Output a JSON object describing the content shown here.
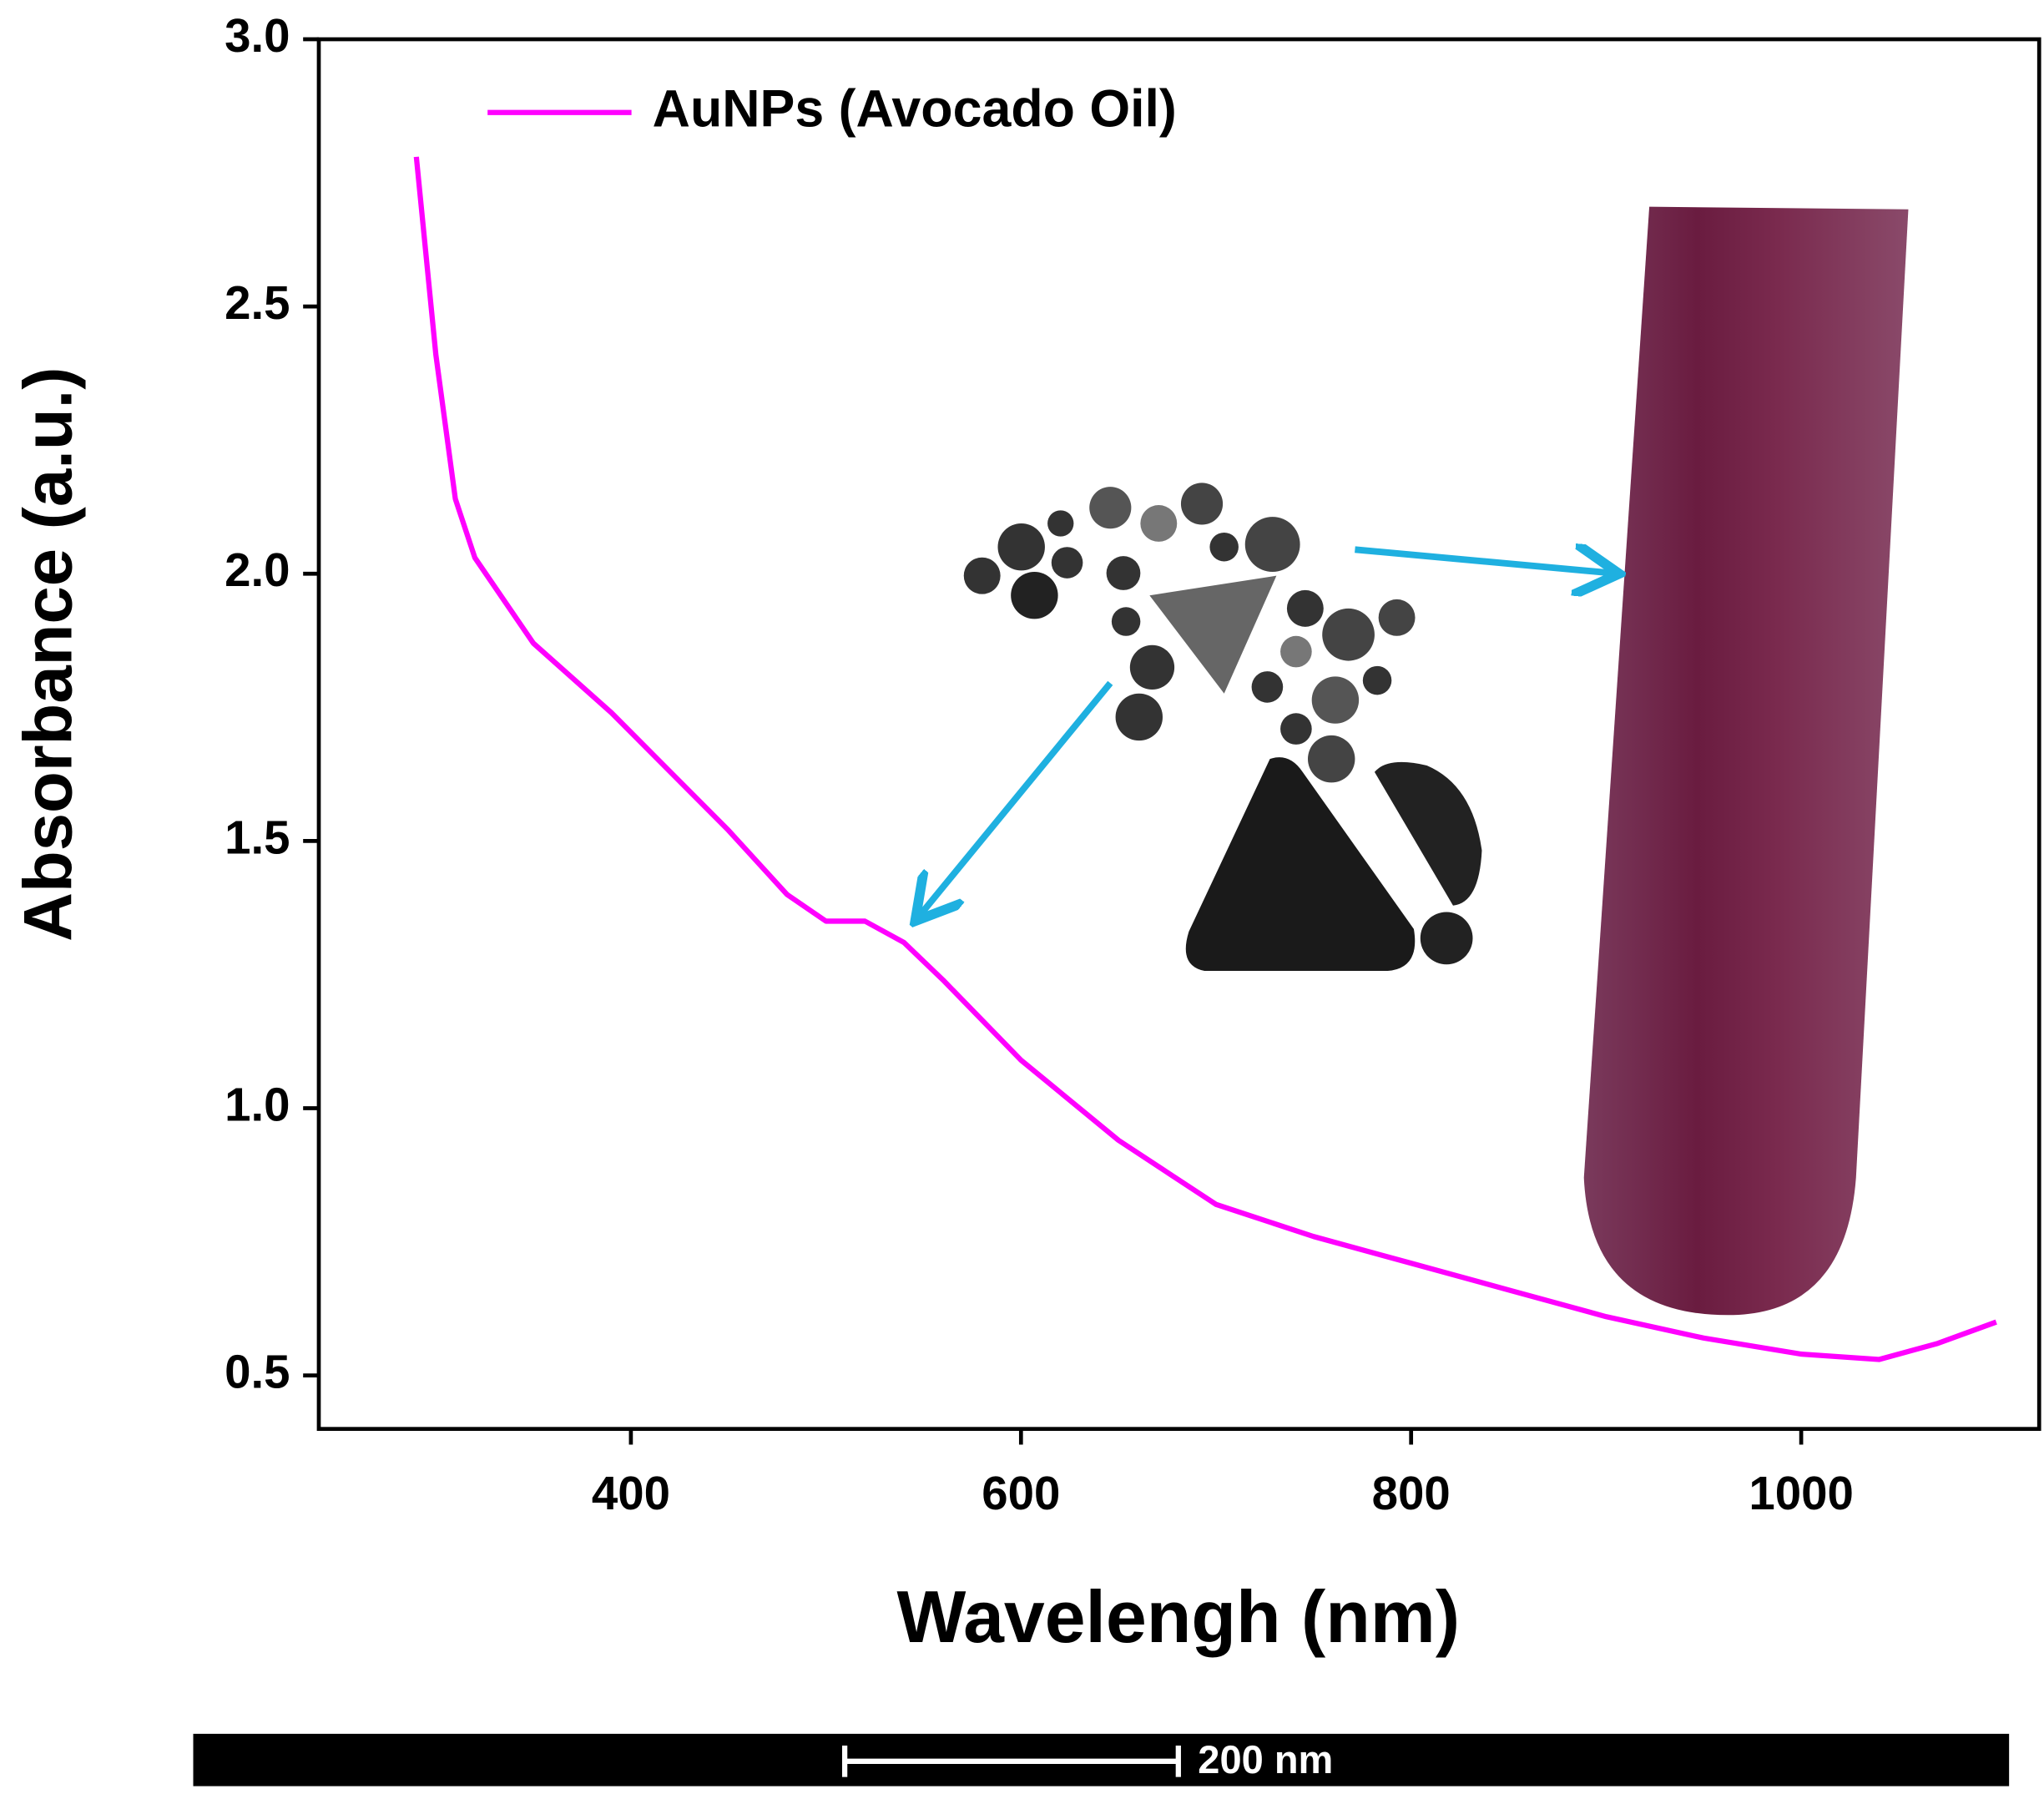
{
  "chart_data": {
    "type": "line",
    "xlabel": "Wavelengh (nm)",
    "ylabel": "Absorbance (a.u.)",
    "xlim": [
      240,
      1122
    ],
    "ylim": [
      0.4,
      3.0
    ],
    "xticks": [
      400,
      600,
      800,
      1000
    ],
    "yticks": [
      0.5,
      1.0,
      1.5,
      2.0,
      2.5,
      3.0
    ],
    "yticks_labels_note_free": null,
    "x": [
      290,
      300,
      310,
      320,
      350,
      390,
      420,
      450,
      480,
      500,
      520,
      540,
      560,
      600,
      650,
      700,
      750,
      800,
      850,
      900,
      950,
      1000,
      1040,
      1070,
      1100
    ],
    "series": [
      {
        "name": "AuNPs (Avocado Oil)",
        "color": "#ff00ff",
        "values": [
          2.78,
          2.41,
          2.14,
          2.03,
          1.87,
          1.74,
          1.63,
          1.52,
          1.4,
          1.35,
          1.35,
          1.31,
          1.24,
          1.09,
          0.94,
          0.82,
          0.76,
          0.71,
          0.66,
          0.61,
          0.57,
          0.54,
          0.53,
          0.56,
          0.6
        ]
      }
    ],
    "legend": "upper left",
    "scale_bar_label": "200 nm"
  }
}
